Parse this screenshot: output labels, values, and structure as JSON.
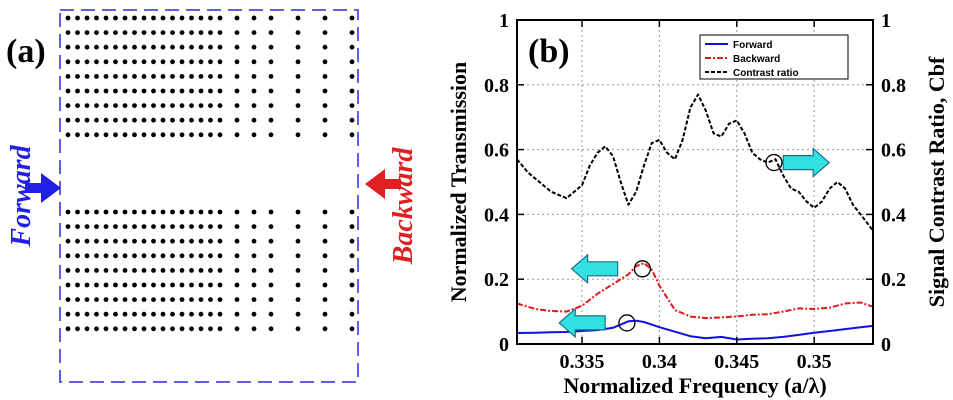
{
  "panel_a": {
    "label": "(a)",
    "forward_label": "Forward",
    "backward_label": "Backward",
    "colors": {
      "forward": "#1f1fe6",
      "backward": "#e02020",
      "frame": "#2b2bd6",
      "holes": "#000000"
    },
    "structure": {
      "rows_top": 9,
      "rows_bottom": 9,
      "column_groups": [
        {
          "count": 17,
          "spacing": "dense"
        },
        {
          "count": 3,
          "spacing": "medium"
        },
        {
          "count": 3,
          "spacing": "sparse"
        }
      ]
    }
  },
  "panel_b": {
    "label": "(b)"
  },
  "chart_data": {
    "type": "line",
    "xlabel": "Normalized Frequency (a/λ)",
    "ylabel_left": "Normalized Transmission",
    "ylabel_right": "Signal Contrast Ratio, Cbf",
    "xlim": [
      0.3308,
      0.3538
    ],
    "ylim": [
      0,
      1
    ],
    "y2lim": [
      0,
      1
    ],
    "xticks": [
      "0.335",
      "0.34",
      "0.345",
      "0.35"
    ],
    "yticks_left": [
      "0",
      "0.2",
      "0.4",
      "0.6",
      "0.8",
      "1"
    ],
    "yticks_right": [
      "0",
      "0.2",
      "0.4",
      "0.6",
      "0.8",
      "1"
    ],
    "grid": true,
    "legend_position": "top-right",
    "series": [
      {
        "name": "Forward",
        "color": "#1010e0",
        "dash": "solid",
        "axis": "left",
        "x": [
          0.3308,
          0.332,
          0.333,
          0.334,
          0.335,
          0.336,
          0.337,
          0.3375,
          0.338,
          0.3385,
          0.339,
          0.3395,
          0.34,
          0.341,
          0.342,
          0.343,
          0.344,
          0.345,
          0.346,
          0.347,
          0.348,
          0.349,
          0.35,
          0.351,
          0.352,
          0.353,
          0.3538
        ],
        "y": [
          0.034,
          0.035,
          0.036,
          0.037,
          0.04,
          0.043,
          0.05,
          0.06,
          0.07,
          0.072,
          0.068,
          0.06,
          0.052,
          0.038,
          0.024,
          0.018,
          0.022,
          0.014,
          0.016,
          0.018,
          0.022,
          0.028,
          0.035,
          0.04,
          0.046,
          0.052,
          0.056
        ]
      },
      {
        "name": "Backward",
        "color": "#e01818",
        "dash": "dashdot",
        "axis": "left",
        "x": [
          0.3308,
          0.332,
          0.333,
          0.334,
          0.335,
          0.336,
          0.337,
          0.3375,
          0.338,
          0.3385,
          0.339,
          0.3395,
          0.34,
          0.341,
          0.342,
          0.343,
          0.344,
          0.345,
          0.346,
          0.347,
          0.348,
          0.349,
          0.35,
          0.351,
          0.352,
          0.353,
          0.3538
        ],
        "y": [
          0.125,
          0.108,
          0.102,
          0.1,
          0.118,
          0.155,
          0.185,
          0.2,
          0.215,
          0.24,
          0.25,
          0.23,
          0.18,
          0.105,
          0.085,
          0.08,
          0.082,
          0.085,
          0.09,
          0.092,
          0.1,
          0.11,
          0.108,
          0.112,
          0.125,
          0.128,
          0.115
        ]
      },
      {
        "name": "Contrast ratio",
        "color": "#000000",
        "dash": "dashed",
        "axis": "right",
        "x": [
          0.3308,
          0.3315,
          0.332,
          0.333,
          0.334,
          0.335,
          0.3355,
          0.336,
          0.3365,
          0.337,
          0.3375,
          0.338,
          0.3385,
          0.339,
          0.3395,
          0.34,
          0.3405,
          0.341,
          0.3415,
          0.342,
          0.3425,
          0.343,
          0.3435,
          0.344,
          0.3445,
          0.345,
          0.3455,
          0.346,
          0.3465,
          0.347,
          0.3475,
          0.348,
          0.3485,
          0.349,
          0.3495,
          0.35,
          0.3505,
          0.351,
          0.3515,
          0.352,
          0.3525,
          0.353,
          0.3538
        ],
        "y": [
          0.57,
          0.53,
          0.51,
          0.47,
          0.45,
          0.49,
          0.55,
          0.59,
          0.61,
          0.58,
          0.5,
          0.43,
          0.47,
          0.55,
          0.62,
          0.63,
          0.59,
          0.57,
          0.63,
          0.73,
          0.77,
          0.72,
          0.65,
          0.64,
          0.68,
          0.69,
          0.65,
          0.59,
          0.57,
          0.56,
          0.57,
          0.52,
          0.48,
          0.47,
          0.44,
          0.42,
          0.44,
          0.48,
          0.5,
          0.48,
          0.43,
          0.4,
          0.35
        ]
      }
    ],
    "annotations": [
      {
        "kind": "circle",
        "x": 0.3474,
        "y": 0.56
      },
      {
        "kind": "arrow",
        "direction": "right",
        "x": 0.348,
        "y": 0.56,
        "color": "#33e0e0"
      },
      {
        "kind": "circle",
        "x": 0.3389,
        "y": 0.232
      },
      {
        "kind": "arrow",
        "direction": "left",
        "x": 0.3373,
        "y": 0.232,
        "color": "#33e0e0"
      },
      {
        "kind": "circle",
        "x": 0.3379,
        "y": 0.065
      },
      {
        "kind": "arrow",
        "direction": "left",
        "x": 0.3365,
        "y": 0.065,
        "color": "#33e0e0"
      }
    ]
  }
}
